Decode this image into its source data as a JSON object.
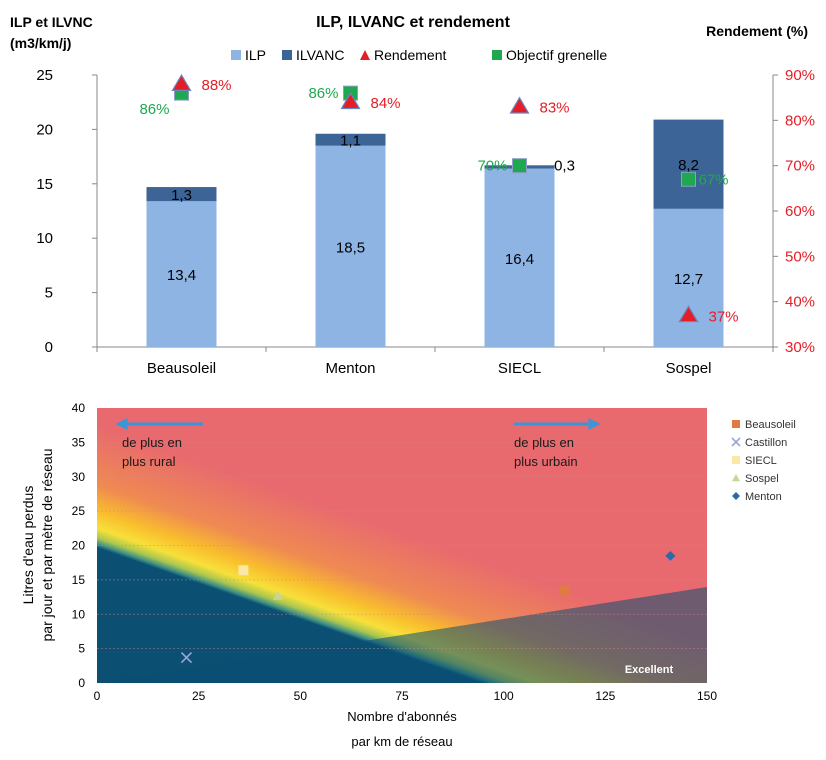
{
  "top_chart_title": "ILP, ILVANC et rendement",
  "chart_data": [
    {
      "type": "bar",
      "title": "ILP, ILVANC et rendement",
      "ylabel": "ILP et ILVNC (m3/km/j)",
      "y2label": "Rendement (%)",
      "categories": [
        "Beausoleil",
        "Menton",
        "SIECL",
        "Sospel"
      ],
      "ylim": [
        0,
        25
      ],
      "y_ticks": [
        "0",
        "5",
        "10",
        "15",
        "20",
        "25"
      ],
      "y2lim": [
        30,
        90
      ],
      "y2_ticks": [
        "30%",
        "40%",
        "50%",
        "60%",
        "70%",
        "80%",
        "90%"
      ],
      "stacked": true,
      "legend_position": "top",
      "legend": [
        "ILP",
        "ILVANC",
        "Rendement",
        "Objectif grenelle"
      ],
      "series": [
        {
          "name": "ILP",
          "kind": "bar",
          "color": "#8eb4e3",
          "values": [
            13.4,
            18.5,
            16.4,
            12.7
          ],
          "labels": [
            "13,4",
            "18,5",
            "16,4",
            "12,7"
          ]
        },
        {
          "name": "ILVANC",
          "kind": "bar",
          "color": "#3d6496",
          "values": [
            1.3,
            1.1,
            0.3,
            8.2
          ],
          "labels": [
            "1,3",
            "1,1",
            "0,3",
            "8,2"
          ]
        },
        {
          "name": "Rendement",
          "kind": "marker",
          "marker": "triangle",
          "axis": "secondary",
          "color": "#e41e26",
          "values": [
            88,
            84,
            83,
            37
          ],
          "labels": [
            "88%",
            "84%",
            "83%",
            "37%"
          ]
        },
        {
          "name": "Objectif grenelle",
          "kind": "marker",
          "marker": "square",
          "axis": "secondary",
          "color": "#1fa84f",
          "values": [
            86,
            86,
            70,
            67
          ],
          "labels": [
            "86%",
            "86%",
            "70%",
            "67%"
          ]
        }
      ]
    },
    {
      "type": "scatter",
      "xlabel": "Nombre d'abonnés par km de réseau",
      "ylabel": "Litres d'eau perdus par jour et par mètre de réseau",
      "xlim": [
        0,
        150
      ],
      "ylim": [
        0,
        40
      ],
      "x_ticks": [
        "0",
        "25",
        "50",
        "75",
        "100",
        "125",
        "150"
      ],
      "y_ticks": [
        "0",
        "5",
        "10",
        "15",
        "20",
        "25",
        "30",
        "35",
        "40"
      ],
      "legend_position": "right",
      "annotations": [
        "de plus en plus rural",
        "de plus en plus urbain",
        "Excellent"
      ],
      "series": [
        {
          "name": "Beausoleil",
          "marker": "square",
          "color": "#e07b45",
          "x": [
            115
          ],
          "y": [
            13.4
          ]
        },
        {
          "name": "Castillon",
          "marker": "x",
          "color": "#9aa7d8",
          "x": [
            22
          ],
          "y": [
            3.7
          ]
        },
        {
          "name": "SIECL",
          "marker": "square",
          "color": "#fbe8a6",
          "x": [
            36
          ],
          "y": [
            16.4
          ]
        },
        {
          "name": "Sospel",
          "marker": "triangle",
          "color": "#c6d69a",
          "x": [
            44.5
          ],
          "y": [
            12.7
          ]
        },
        {
          "name": "Menton",
          "marker": "diamond",
          "color": "#2c6aa8",
          "x": [
            141
          ],
          "y": [
            18.5
          ]
        }
      ]
    }
  ]
}
